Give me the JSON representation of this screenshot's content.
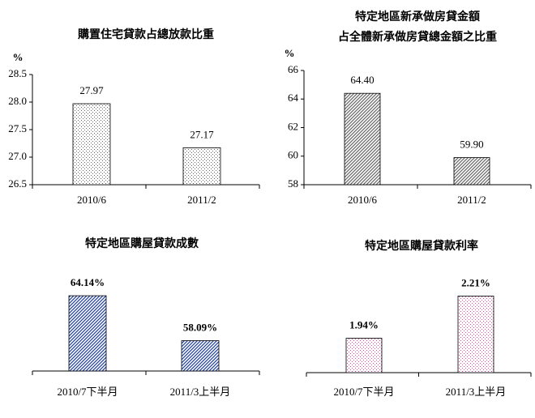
{
  "chart_data": [
    {
      "type": "bar",
      "title": [
        "購置住宅貸款占總放款比重"
      ],
      "y_unit": "%",
      "categories": [
        "2010/6",
        "2011/2"
      ],
      "values": [
        27.97,
        27.17
      ],
      "color": "#666666",
      "pattern": "dots",
      "label_color": "#000000",
      "ylim": [
        26.5,
        28.5
      ],
      "yticks": [
        26.5,
        {
          "value": 27,
          "label": "27.0"
        },
        27.5,
        {
          "value": 28,
          "label": "28.0"
        },
        28.5
      ]
    },
    {
      "type": "bar",
      "title": [
        "特定地區新承做房貸金額",
        "占全體新承做房貸總金額之比重"
      ],
      "y_unit": "%",
      "categories": [
        "2010/6",
        "2011/2"
      ],
      "values": [
        64.4,
        59.9
      ],
      "value_labels": [
        "64.40",
        "59.90"
      ],
      "color": "#666666",
      "pattern": "hatch",
      "label_color": "#000000",
      "ylim": [
        58,
        66
      ],
      "yticks": [
        58,
        60,
        62,
        64,
        66
      ]
    },
    {
      "type": "bar",
      "title": [
        "特定地區購屋貸款成數"
      ],
      "categories": [
        "2010/7下半月",
        "2011/3上半月"
      ],
      "values": [
        64.14,
        58.09
      ],
      "value_labels": [
        "64.14%",
        "58.09%"
      ],
      "color": "#1f3f99",
      "pattern": "hatch",
      "label_color": "#1a1aa0",
      "ylim": [
        54,
        66
      ]
    },
    {
      "type": "bar",
      "title": [
        "特定地區購屋貸款利率"
      ],
      "categories": [
        "2010/7下半月",
        "2011/3上半月"
      ],
      "values": [
        1.94,
        2.21
      ],
      "value_labels": [
        "1.94%",
        "2.21%"
      ],
      "color": "#e040a0",
      "pattern": "dots",
      "label_color": "#d000d0",
      "ylim": [
        1.72,
        2.29
      ]
    }
  ]
}
